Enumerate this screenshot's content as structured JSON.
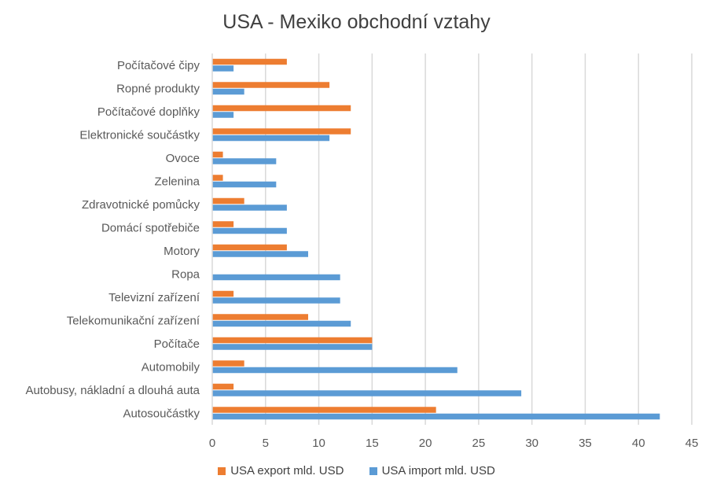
{
  "chart_data": {
    "type": "bar",
    "orientation": "horizontal",
    "title": "USA - Mexiko obchodní vztahy",
    "categories": [
      "Počítačové čipy",
      "Ropné produkty",
      "Počítačové doplňky",
      "Elektronické součástky",
      "Ovoce",
      "Zelenina",
      "Zdravotnické pomůcky",
      "Domácí spotřebiče",
      "Motory",
      "Ropa",
      "Televizní zařízení",
      "Telekomunikační zařízení",
      "Počítače",
      "Automobily",
      "Autobusy, nákladní a dlouhá auta",
      "Autosoučástky"
    ],
    "series": [
      {
        "name": "USA export mld. USD",
        "color": "#ED7D31",
        "values": [
          7,
          11,
          13,
          13,
          1,
          1,
          3,
          2,
          7,
          0,
          2,
          9,
          15,
          3,
          2,
          21
        ]
      },
      {
        "name": "USA import mld. USD",
        "color": "#5B9BD5",
        "values": [
          2,
          3,
          2,
          11,
          6,
          6,
          7,
          7,
          9,
          12,
          12,
          13,
          15,
          23,
          29,
          42
        ]
      }
    ],
    "xlim": [
      0,
      45
    ],
    "xticks": [
      "0",
      "5",
      "10",
      "15",
      "20",
      "25",
      "30",
      "35",
      "40",
      "45"
    ],
    "grid": true,
    "legend": "bottom"
  }
}
